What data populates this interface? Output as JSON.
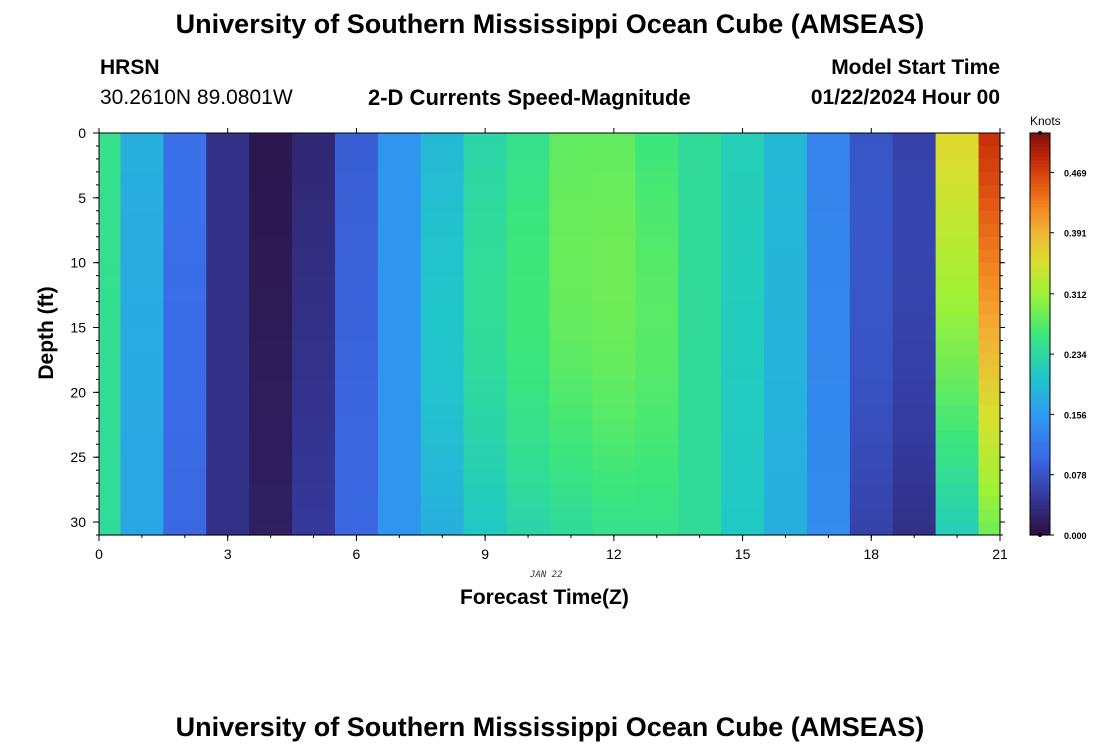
{
  "header": {
    "title": "University of Southern Mississippi Ocean Cube (AMSEAS)",
    "station": "HRSN",
    "coords": "30.2610N  89.0801W",
    "plot_title": "2-D Currents Speed-Magnitude",
    "model_start_label": "Model Start Time",
    "model_start_value": "01/22/2024 Hour 00"
  },
  "footer": {
    "title": "University of Southern Mississippi Ocean Cube (AMSEAS)"
  },
  "chart_data": {
    "type": "heatmap",
    "title": "2-D Currents Speed-Magnitude",
    "xlabel": "Forecast Time(Z)",
    "ylabel": "Depth (ft)",
    "x_date_label": "JAN 22",
    "xlim": [
      0,
      21
    ],
    "ylim": [
      0,
      31
    ],
    "x_ticks": [
      0,
      3,
      6,
      9,
      12,
      15,
      18,
      21
    ],
    "y_ticks": [
      0,
      5,
      10,
      15,
      20,
      25,
      30
    ],
    "colorbar": {
      "label": "Knots",
      "ticks": [
        0.0,
        0.078,
        0.156,
        0.234,
        0.312,
        0.391,
        0.469
      ],
      "tick_labels": [
        "0.000",
        "0.078",
        "0.156",
        "0.234",
        "0.312",
        "0.391",
        "0.469"
      ],
      "range": [
        0,
        0.52
      ]
    },
    "time_hours": [
      0,
      1,
      2,
      3,
      4,
      5,
      6,
      7,
      8,
      9,
      10,
      11,
      12,
      13,
      14,
      15,
      16,
      17,
      18,
      19,
      20,
      21
    ],
    "surface_speed_knots": [
      0.25,
      0.18,
      0.11,
      0.04,
      0.01,
      0.03,
      0.09,
      0.15,
      0.19,
      0.23,
      0.25,
      0.28,
      0.28,
      0.26,
      0.24,
      0.22,
      0.19,
      0.13,
      0.08,
      0.06,
      0.36,
      0.48
    ],
    "bottom_speed_knots": [
      0.24,
      0.17,
      0.1,
      0.04,
      0.02,
      0.05,
      0.1,
      0.15,
      0.18,
      0.21,
      0.23,
      0.24,
      0.25,
      0.25,
      0.24,
      0.21,
      0.18,
      0.14,
      0.1,
      0.08,
      0.26,
      0.33
    ],
    "depth_profile": "mid-depth maxima at hours 9-12; strongest flow (~0.47 kt) near surface after hour 18"
  }
}
